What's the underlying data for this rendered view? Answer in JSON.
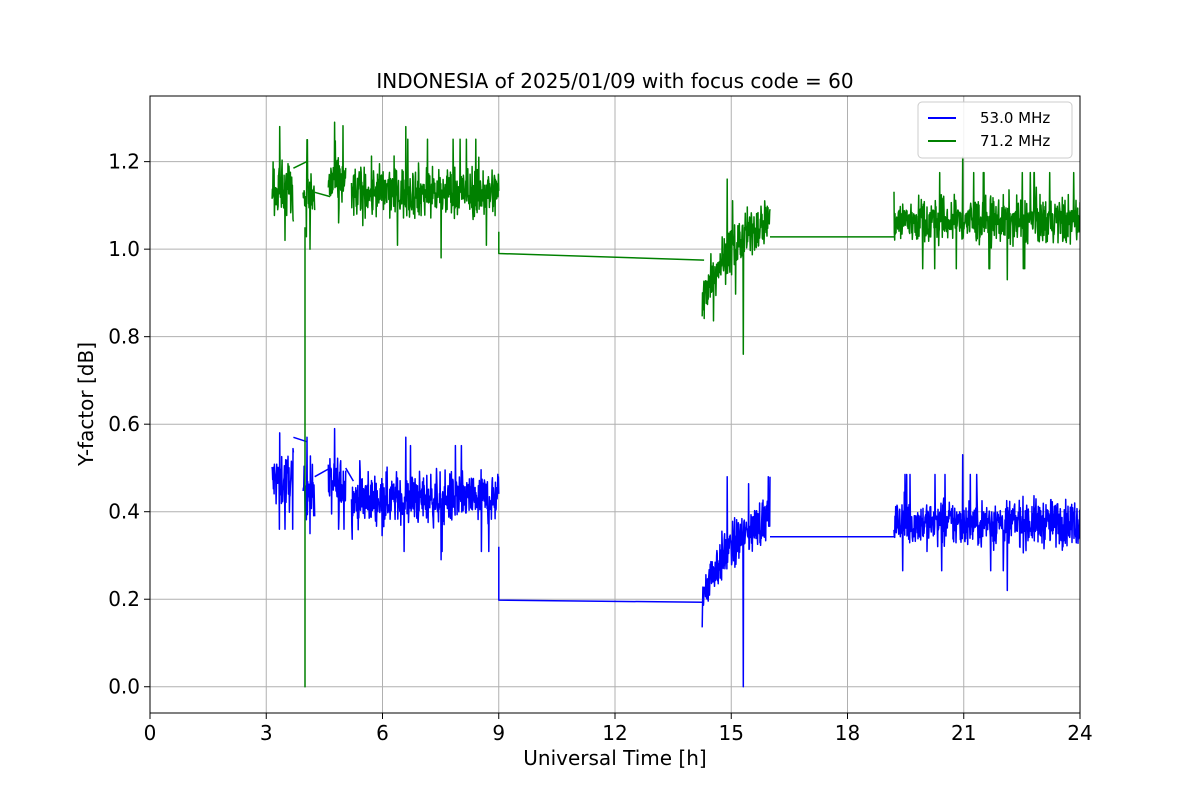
{
  "chart_data": {
    "type": "line",
    "title": "INDONESIA of 2025/01/09 with focus code = 60",
    "xlabel": "Universal Time [h]",
    "ylabel": "Y-factor [dB]",
    "xlim": [
      0,
      24
    ],
    "ylim": [
      -0.06,
      1.35
    ],
    "xticks": [
      0,
      3,
      6,
      9,
      12,
      15,
      18,
      21,
      24
    ],
    "yticks": [
      0.0,
      0.2,
      0.4,
      0.6,
      0.8,
      1.0,
      1.2
    ],
    "xtick_labels": [
      "0",
      "3",
      "6",
      "9",
      "12",
      "15",
      "18",
      "21",
      "24"
    ],
    "ytick_labels": [
      "0.0",
      "0.2",
      "0.4",
      "0.6",
      "0.8",
      "1.0",
      "1.2"
    ],
    "grid": true,
    "legend_position": "top-right",
    "series": [
      {
        "name": "53.0 MHz",
        "color": "#0000ff",
        "segments": [
          {
            "kind": "noise",
            "x": [
              3.15,
              3.7
            ],
            "mean": 0.47,
            "amp": 0.06,
            "peak": [
              0.36,
              0.58
            ]
          },
          {
            "kind": "line",
            "points": [
              [
                3.7,
                0.57
              ],
              [
                4.05,
                0.56
              ]
            ]
          },
          {
            "kind": "noise",
            "x": [
              3.95,
              4.25
            ],
            "mean": 0.45,
            "amp": 0.06,
            "peak": [
              0.35,
              0.57
            ]
          },
          {
            "kind": "line",
            "points": [
              [
                4.25,
                0.48
              ],
              [
                4.65,
                0.5
              ]
            ]
          },
          {
            "kind": "noise",
            "x": [
              4.6,
              5.05
            ],
            "mean": 0.46,
            "amp": 0.06,
            "peak": [
              0.36,
              0.59
            ]
          },
          {
            "kind": "line",
            "points": [
              [
                5.05,
                0.5
              ],
              [
                5.25,
                0.47
              ]
            ]
          },
          {
            "kind": "noise",
            "x": [
              5.2,
              9.0
            ],
            "mean": 0.43,
            "amp": 0.055,
            "peak": [
              0.29,
              0.57
            ]
          },
          {
            "kind": "line",
            "points": [
              [
                9.0,
                0.32
              ],
              [
                9.0,
                0.198
              ],
              [
                14.3,
                0.193
              ]
            ]
          },
          {
            "kind": "ramp",
            "x": [
              14.25,
              16.0
            ],
            "start": 0.18,
            "end": 0.39,
            "amp": 0.05,
            "peak": [
              0.0,
              0.48
            ]
          },
          {
            "kind": "line",
            "points": [
              [
                16.0,
                0.343
              ],
              [
                19.2,
                0.343
              ]
            ]
          },
          {
            "kind": "noise",
            "x": [
              19.2,
              24.0
            ],
            "mean": 0.375,
            "amp": 0.05,
            "peak": [
              0.22,
              0.53
            ]
          }
        ]
      },
      {
        "name": "71.2 MHz",
        "color": "#008000",
        "segments": [
          {
            "kind": "noise",
            "x": [
              3.15,
              3.7
            ],
            "mean": 1.14,
            "amp": 0.06,
            "peak": [
              1.02,
              1.28
            ]
          },
          {
            "kind": "line",
            "points": [
              [
                3.7,
                1.185
              ],
              [
                4.05,
                1.2
              ]
            ]
          },
          {
            "kind": "noise",
            "x": [
              3.95,
              4.25
            ],
            "mean": 1.12,
            "amp": 0.06,
            "peak": [
              1.0,
              1.25
            ]
          },
          {
            "kind": "line",
            "points": [
              [
                4.0,
                1.05
              ],
              [
                4.0,
                0.0
              ],
              [
                4.0,
                1.04
              ]
            ]
          },
          {
            "kind": "line",
            "points": [
              [
                4.25,
                1.13
              ],
              [
                4.65,
                1.12
              ]
            ]
          },
          {
            "kind": "noise",
            "x": [
              4.6,
              5.05
            ],
            "mean": 1.15,
            "amp": 0.06,
            "peak": [
              1.06,
              1.29
            ]
          },
          {
            "kind": "noise",
            "x": [
              5.2,
              9.0
            ],
            "mean": 1.13,
            "amp": 0.055,
            "peak": [
              0.98,
              1.28
            ]
          },
          {
            "kind": "line",
            "points": [
              [
                9.0,
                1.04
              ],
              [
                9.0,
                0.99
              ],
              [
                14.3,
                0.975
              ]
            ]
          },
          {
            "kind": "ramp",
            "x": [
              14.25,
              16.0
            ],
            "start": 0.86,
            "end": 1.07,
            "amp": 0.05,
            "peak": [
              0.76,
              1.16
            ]
          },
          {
            "kind": "line",
            "points": [
              [
                16.0,
                1.028
              ],
              [
                19.2,
                1.028
              ]
            ]
          },
          {
            "kind": "noise",
            "x": [
              19.2,
              24.0
            ],
            "mean": 1.065,
            "amp": 0.05,
            "peak": [
              0.93,
              1.21
            ]
          }
        ]
      }
    ]
  }
}
